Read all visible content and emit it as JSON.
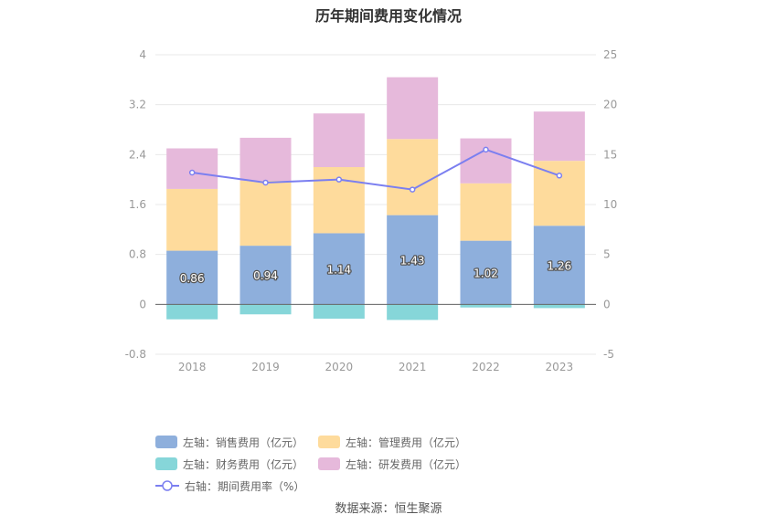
{
  "title": "历年期间费用变化情况",
  "source": "数据来源：恒生聚源",
  "colors": {
    "sales": "#8eafdc",
    "mgmt": "#fedb9c",
    "finance": "#86d6d9",
    "rd": "#e6b9db",
    "rate": "#7b7ff0",
    "grid": "#e8e8e8",
    "axis_text": "#999999"
  },
  "legend": [
    {
      "label": "左轴：销售费用（亿元）",
      "color_key": "sales",
      "kind": "box"
    },
    {
      "label": "左轴：管理费用（亿元）",
      "color_key": "mgmt",
      "kind": "box"
    },
    {
      "label": "左轴：财务费用（亿元）",
      "color_key": "finance",
      "kind": "box"
    },
    {
      "label": "左轴：研发费用（亿元）",
      "color_key": "rd",
      "kind": "box"
    },
    {
      "label": "右轴：期间费用率（%）",
      "color_key": "rate",
      "kind": "line"
    }
  ],
  "chart_data": {
    "type": "bar",
    "stacked": true,
    "categories": [
      "2018",
      "2019",
      "2020",
      "2021",
      "2022",
      "2023"
    ],
    "series": [
      {
        "name": "左轴：销售费用（亿元）",
        "axis": "left",
        "values": [
          0.86,
          0.94,
          1.14,
          1.43,
          1.02,
          1.26
        ],
        "labels": [
          "0.86",
          "0.94",
          "1.14",
          "1.43",
          "1.02",
          "1.26"
        ]
      },
      {
        "name": "左轴：管理费用（亿元）",
        "axis": "left",
        "values": [
          0.99,
          1.04,
          1.06,
          1.22,
          0.92,
          1.04
        ]
      },
      {
        "name": "左轴：财务费用（亿元）",
        "axis": "left",
        "values": [
          -0.24,
          -0.16,
          -0.23,
          -0.25,
          -0.05,
          -0.06
        ]
      },
      {
        "name": "左轴：研发费用（亿元）",
        "axis": "left",
        "values": [
          0.65,
          0.69,
          0.86,
          0.99,
          0.72,
          0.79
        ]
      },
      {
        "name": "右轴：期间费用率（%）",
        "axis": "right",
        "type": "line",
        "values": [
          13.2,
          12.2,
          12.5,
          11.5,
          15.5,
          12.9
        ]
      }
    ],
    "left_axis": {
      "ticks": [
        "4",
        "3.2",
        "2.4",
        "1.6",
        "0.8",
        "0",
        "-0.8"
      ],
      "ylim": [
        -0.8,
        4
      ]
    },
    "right_axis": {
      "ticks": [
        "25",
        "20",
        "15",
        "10",
        "5",
        "0",
        "-5"
      ],
      "ylim": [
        -5,
        25
      ]
    },
    "grid": true,
    "legend_position": "bottom"
  }
}
